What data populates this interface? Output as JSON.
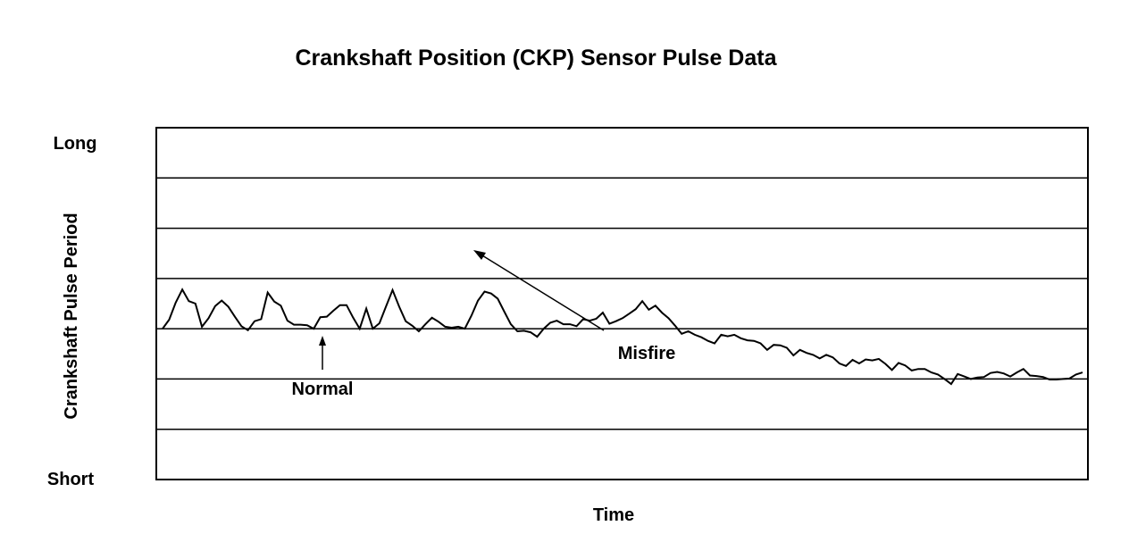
{
  "chart_data": {
    "type": "line",
    "title": "Crankshaft Position (CKP) Sensor Pulse Data",
    "xlabel": "Time",
    "ylabel": "Crankshaft Pulse Period",
    "y_top_label": "Long",
    "y_bottom_label": "Short",
    "ylim": [
      0,
      7
    ],
    "xlim": [
      0,
      140
    ],
    "grid": {
      "horizontal": true,
      "vertical": false
    },
    "legend": "none",
    "line_color": "#000000",
    "series": [
      {
        "x": [
          0,
          1,
          2,
          3,
          4,
          5,
          6,
          7,
          8,
          9,
          10,
          11,
          12,
          13,
          14,
          15,
          16,
          17,
          18,
          19,
          20,
          21,
          22,
          23,
          24,
          25,
          26,
          27,
          28,
          29,
          30,
          31,
          32,
          33,
          34,
          35,
          36,
          37,
          38,
          39,
          40,
          41,
          42,
          43,
          44,
          45,
          46,
          47,
          48,
          49,
          50,
          51,
          52,
          53,
          54,
          55,
          56,
          57,
          58,
          59,
          60,
          61,
          62,
          63,
          64,
          65,
          66,
          67,
          68,
          69,
          70,
          71,
          72,
          73,
          74,
          75,
          76,
          77,
          78,
          79,
          80,
          81,
          82,
          83,
          84,
          85,
          86,
          87,
          88,
          89,
          90,
          91,
          92,
          93,
          94,
          95,
          96,
          97,
          98,
          99,
          100,
          101,
          102,
          103,
          104,
          105,
          106,
          107,
          108,
          109,
          110,
          111,
          112,
          113,
          114,
          115,
          116,
          117,
          118,
          119,
          120,
          121,
          122,
          123,
          124,
          125,
          126,
          127,
          128,
          129,
          130,
          131,
          132,
          133,
          134,
          135,
          136,
          137,
          138,
          139,
          140
        ],
        "values": [
          3.0,
          3.18,
          3.52,
          3.78,
          3.55,
          3.5,
          3.04,
          3.21,
          3.45,
          3.56,
          3.44,
          3.24,
          3.05,
          2.97,
          3.15,
          3.19,
          3.72,
          3.54,
          3.46,
          3.16,
          3.08,
          3.08,
          3.07,
          3.0,
          3.23,
          3.24,
          3.36,
          3.47,
          3.47,
          3.22,
          3.0,
          3.4,
          3.0,
          3.11,
          3.44,
          3.77,
          3.44,
          3.15,
          3.06,
          2.95,
          3.09,
          3.22,
          3.14,
          3.04,
          3.02,
          3.04,
          3.0,
          3.26,
          3.56,
          3.74,
          3.7,
          3.6,
          3.34,
          3.09,
          2.95,
          2.96,
          2.93,
          2.84,
          3.0,
          3.12,
          3.16,
          3.09,
          3.09,
          3.05,
          3.19,
          3.16,
          3.2,
          3.32,
          3.1,
          3.15,
          3.21,
          3.3,
          3.39,
          3.55,
          3.38,
          3.46,
          3.32,
          3.21,
          3.06,
          2.9,
          2.95,
          2.88,
          2.83,
          2.76,
          2.71,
          2.88,
          2.85,
          2.88,
          2.81,
          2.77,
          2.76,
          2.71,
          2.58,
          2.68,
          2.67,
          2.62,
          2.47,
          2.58,
          2.52,
          2.48,
          2.41,
          2.48,
          2.43,
          2.31,
          2.26,
          2.38,
          2.31,
          2.39,
          2.37,
          2.4,
          2.3,
          2.18,
          2.32,
          2.27,
          2.17,
          2.2,
          2.2,
          2.13,
          2.09,
          2.0,
          1.9,
          2.1,
          2.05,
          2.0,
          2.03,
          2.04,
          2.12,
          2.14,
          2.11,
          2.05,
          2.13,
          2.2,
          2.07,
          2.06,
          2.04,
          1.99,
          1.99,
          2.0,
          2.01,
          2.09,
          2.13
        ]
      }
    ],
    "annotations": [
      {
        "text": "Normal",
        "x": 24,
        "y": 3.0
      },
      {
        "text": "Misfire",
        "x": 47,
        "y": 4.65
      }
    ]
  }
}
